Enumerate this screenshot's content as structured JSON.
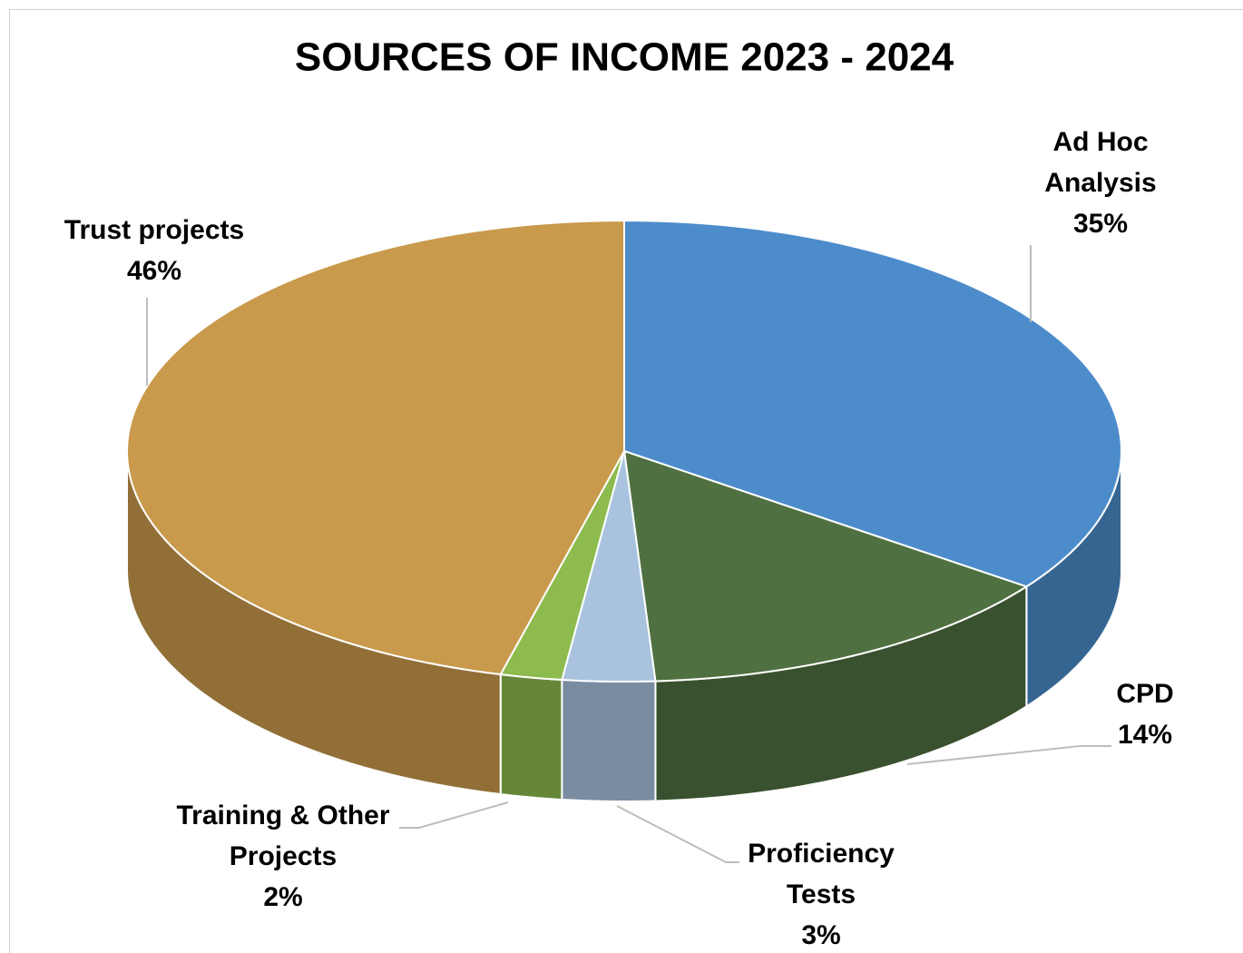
{
  "chart_data": {
    "type": "pie3d",
    "title": "SOURCES OF INCOME 2023 - 2024",
    "categories": [
      "Ad Hoc Analysis",
      "CPD",
      "Proficiency Tests",
      "Training & Other Projects",
      "Trust projects"
    ],
    "values": [
      35,
      14,
      3,
      2,
      46
    ],
    "value_labels": [
      "35%",
      "14%",
      "3%",
      "2%",
      "46%"
    ],
    "colors": [
      "#4d8ccb",
      "#4f7040",
      "#a9c3de",
      "#8dbb4e",
      "#c99a4c"
    ]
  }
}
